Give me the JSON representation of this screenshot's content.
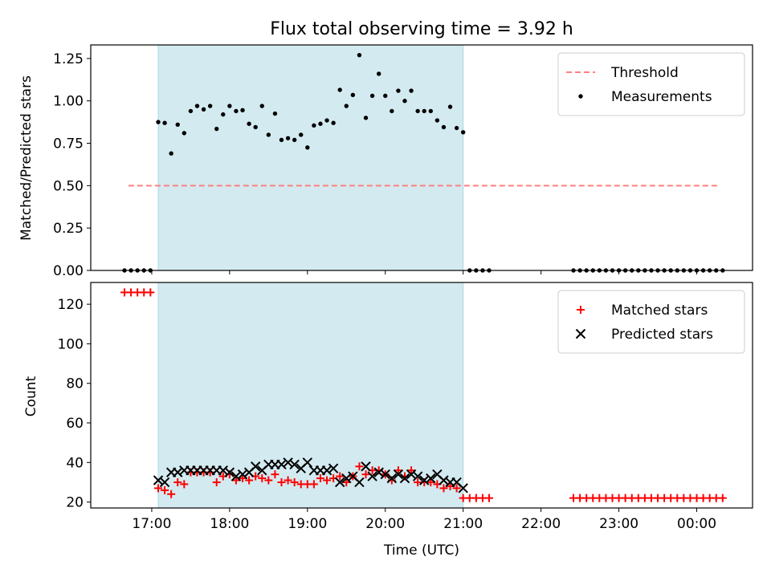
{
  "title": "Flux total observing time = 3.92 h",
  "chart_data": [
    {
      "type": "scatter",
      "ylabel": "Matched/Predicted stars",
      "xlabel": "",
      "ylim": [
        0.0,
        1.33
      ],
      "yticks": [
        0.0,
        0.25,
        0.5,
        0.75,
        1.0,
        1.25
      ],
      "ytick_labels": [
        "0.00",
        "0.25",
        "0.50",
        "0.75",
        "1.00",
        "1.25"
      ],
      "grid": false,
      "legend_placement": "top-right",
      "observing_window": {
        "start": "17:05",
        "end": "21:00",
        "color": "#d3eaf0"
      },
      "threshold": {
        "name": "Threshold",
        "value": 0.5,
        "x_start": "16:42",
        "x_end": "00:18",
        "color": "#ff7f7f"
      },
      "series": [
        {
          "name": "Measurements",
          "color": "#000000",
          "x": [
            "16:39",
            "16:44",
            "16:49",
            "16:54",
            "16:59",
            "17:05",
            "17:10",
            "17:15",
            "17:20",
            "17:25",
            "17:30",
            "17:35",
            "17:40",
            "17:45",
            "17:50",
            "17:55",
            "18:00",
            "18:05",
            "18:10",
            "18:15",
            "18:20",
            "18:25",
            "18:30",
            "18:35",
            "18:40",
            "18:45",
            "18:50",
            "18:55",
            "19:00",
            "19:05",
            "19:10",
            "19:15",
            "19:20",
            "19:25",
            "19:30",
            "19:35",
            "19:40",
            "19:45",
            "19:50",
            "19:55",
            "20:00",
            "20:05",
            "20:10",
            "20:15",
            "20:20",
            "20:25",
            "20:30",
            "20:35",
            "20:40",
            "20:45",
            "20:50",
            "20:55",
            "21:00",
            "21:05",
            "21:10",
            "21:15",
            "21:20",
            "22:25",
            "22:30",
            "22:35",
            "22:40",
            "22:45",
            "22:50",
            "22:55",
            "23:00",
            "23:05",
            "23:10",
            "23:15",
            "23:20",
            "23:25",
            "23:30",
            "23:35",
            "23:40",
            "23:45",
            "23:50",
            "23:55",
            "00:00",
            "00:05",
            "00:10",
            "00:15",
            "00:20"
          ],
          "y": [
            0,
            0,
            0,
            0,
            0,
            0.875,
            0.87,
            0.69,
            0.86,
            0.81,
            0.94,
            0.97,
            0.95,
            0.97,
            0.835,
            0.92,
            0.97,
            0.94,
            0.945,
            0.865,
            0.845,
            0.97,
            0.8,
            0.925,
            0.77,
            0.78,
            0.77,
            0.8,
            0.725,
            0.855,
            0.865,
            0.885,
            0.87,
            1.065,
            0.97,
            1.035,
            1.27,
            0.9,
            1.03,
            1.16,
            1.03,
            0.94,
            1.06,
            1.0,
            1.06,
            0.94,
            0.94,
            0.94,
            0.885,
            0.845,
            0.965,
            0.84,
            0.815,
            0,
            0,
            0,
            0,
            0,
            0,
            0,
            0,
            0,
            0,
            0,
            0,
            0,
            0,
            0,
            0,
            0,
            0,
            0,
            0,
            0,
            0,
            0,
            0,
            0,
            0,
            0,
            0
          ]
        }
      ]
    },
    {
      "type": "scatter",
      "ylabel": "Count",
      "xlabel": "Time (UTC)",
      "ylim": [
        17,
        131
      ],
      "yticks": [
        20,
        40,
        60,
        80,
        100,
        120
      ],
      "ytick_labels": [
        "20",
        "40",
        "60",
        "80",
        "100",
        "120"
      ],
      "xticks": [
        "17:00",
        "18:00",
        "19:00",
        "20:00",
        "21:00",
        "22:00",
        "23:00",
        "00:00"
      ],
      "x_range": [
        "16:13",
        "00:43"
      ],
      "grid": false,
      "legend_placement": "top-right",
      "observing_window": {
        "start": "17:05",
        "end": "21:00",
        "color": "#d3eaf0"
      },
      "series": [
        {
          "name": "Matched stars",
          "marker": "plus",
          "color": "#ff0000",
          "x": [
            "16:39",
            "16:44",
            "16:49",
            "16:54",
            "16:59",
            "17:05",
            "17:10",
            "17:15",
            "17:20",
            "17:25",
            "17:30",
            "17:35",
            "17:40",
            "17:45",
            "17:50",
            "17:55",
            "18:00",
            "18:05",
            "18:10",
            "18:15",
            "18:20",
            "18:25",
            "18:30",
            "18:35",
            "18:40",
            "18:45",
            "18:50",
            "18:55",
            "19:00",
            "19:05",
            "19:10",
            "19:15",
            "19:20",
            "19:25",
            "19:30",
            "19:35",
            "19:40",
            "19:45",
            "19:50",
            "19:55",
            "20:00",
            "20:05",
            "20:10",
            "20:15",
            "20:20",
            "20:25",
            "20:30",
            "20:35",
            "20:40",
            "20:45",
            "20:50",
            "20:55",
            "21:00",
            "21:05",
            "21:10",
            "21:15",
            "21:20",
            "22:25",
            "22:30",
            "22:35",
            "22:40",
            "22:45",
            "22:50",
            "22:55",
            "23:00",
            "23:05",
            "23:10",
            "23:15",
            "23:20",
            "23:25",
            "23:30",
            "23:35",
            "23:40",
            "23:45",
            "23:50",
            "23:55",
            "00:00",
            "00:05",
            "00:10",
            "00:15",
            "00:20"
          ],
          "y": [
            126,
            126,
            126,
            126,
            126,
            27,
            26,
            24,
            30,
            29,
            35,
            35,
            35,
            35,
            30,
            33,
            34,
            31,
            32,
            31,
            33,
            32,
            31,
            34,
            30,
            31,
            30,
            29,
            29,
            29,
            32,
            31,
            32,
            33,
            30,
            33,
            38,
            34,
            36,
            36,
            34,
            31,
            36,
            33,
            36,
            30,
            30,
            30,
            29,
            27,
            28,
            27,
            22,
            22,
            22,
            22,
            22,
            22,
            22,
            22,
            22,
            22,
            22,
            22,
            22,
            22,
            22,
            22,
            22,
            22,
            22,
            22,
            22,
            22,
            22,
            22,
            22,
            22,
            22,
            22,
            22
          ]
        },
        {
          "name": "Predicted stars",
          "marker": "x",
          "color": "#000000",
          "x": [
            "17:05",
            "17:10",
            "17:15",
            "17:20",
            "17:25",
            "17:30",
            "17:35",
            "17:40",
            "17:45",
            "17:50",
            "17:55",
            "18:00",
            "18:05",
            "18:10",
            "18:15",
            "18:20",
            "18:25",
            "18:30",
            "18:35",
            "18:40",
            "18:45",
            "18:50",
            "18:55",
            "19:00",
            "19:05",
            "19:10",
            "19:15",
            "19:20",
            "19:25",
            "19:30",
            "19:35",
            "19:40",
            "19:45",
            "19:50",
            "19:55",
            "20:00",
            "20:05",
            "20:10",
            "20:15",
            "20:20",
            "20:25",
            "20:30",
            "20:35",
            "20:40",
            "20:45",
            "20:50",
            "20:55",
            "21:00"
          ],
          "y": [
            31,
            30,
            35,
            35,
            36,
            36,
            36,
            36,
            36,
            36,
            36,
            35,
            33,
            34,
            35,
            38,
            36,
            39,
            39,
            39,
            40,
            39,
            37,
            40,
            36,
            36,
            36,
            37,
            30,
            32,
            33,
            30,
            38,
            33,
            35,
            34,
            32,
            34,
            32,
            34,
            33,
            31,
            32,
            34,
            31,
            30,
            30,
            27
          ]
        }
      ]
    }
  ]
}
